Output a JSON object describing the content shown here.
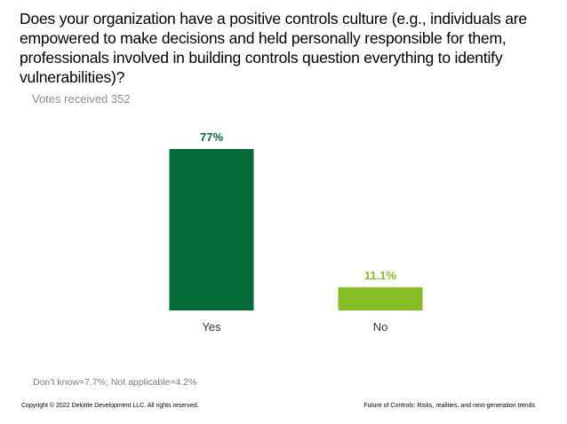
{
  "slide": {
    "title": "Does your organization have a positive controls culture (e.g., individuals are empowered to make decisions and held personally responsible for them, professionals involved in building controls question everything to identify vulnerabilities)?",
    "subtitle": "Votes received 352",
    "footnote": "Don’t know=7.7%; Not applicable=4.2%",
    "copyright": "Copyright © 2022 Deloitte Development LLC. All rights reserved.",
    "footer_title": "Future of Controls: Risks, realities, and next-generation trends"
  },
  "chart_data": {
    "type": "bar",
    "categories": [
      "Yes",
      "No"
    ],
    "values": [
      77,
      11.1
    ],
    "value_labels": [
      "77%",
      "11.1%"
    ],
    "colors": [
      "#046A38",
      "#86BC25"
    ],
    "ylim": [
      0,
      77
    ],
    "grid": false,
    "legend": "none",
    "title": "",
    "xlabel": "",
    "ylabel": ""
  }
}
